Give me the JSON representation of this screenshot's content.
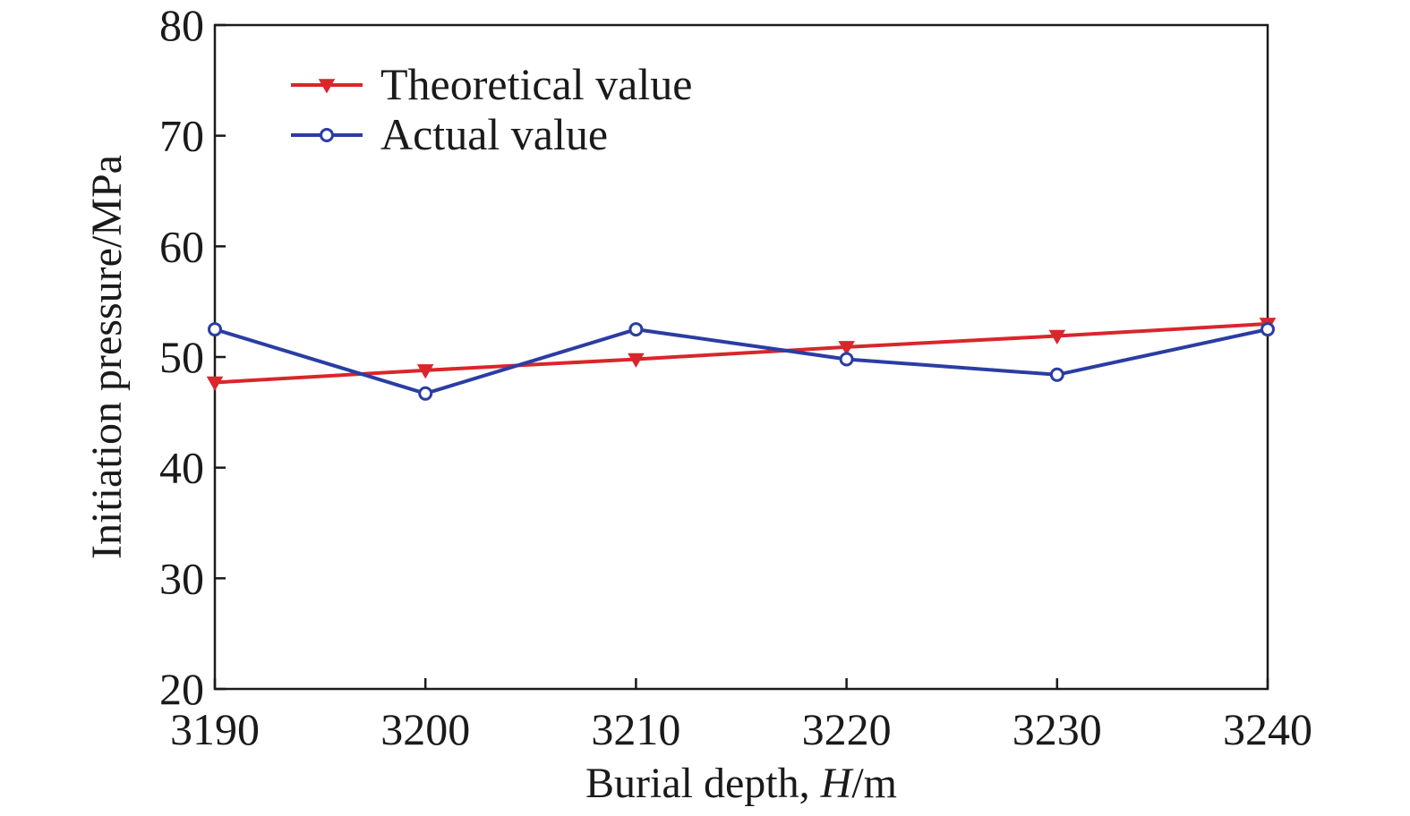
{
  "chart_data": {
    "type": "line",
    "x": [
      3190,
      3200,
      3210,
      3220,
      3230,
      3240
    ],
    "series": [
      {
        "name": "Theoretical value",
        "color": "#d9262b",
        "marker": "triangle-down",
        "values": [
          47.7,
          48.8,
          49.8,
          50.9,
          51.9,
          53.0
        ]
      },
      {
        "name": "Actual value",
        "color": "#2b3da3",
        "marker": "circle-open",
        "values": [
          52.5,
          46.7,
          52.5,
          49.8,
          48.4,
          52.5
        ]
      }
    ],
    "xlabel": "Burial depth, H/m",
    "xlabel_parts": {
      "pre": "Burial depth, ",
      "italic": "H",
      "post": "/m"
    },
    "ylabel": "Initiation pressure/MPa",
    "xlim": [
      3190,
      3240
    ],
    "ylim": [
      20,
      80
    ],
    "xticks": [
      3190,
      3200,
      3210,
      3220,
      3230,
      3240
    ],
    "yticks": [
      20,
      30,
      40,
      50,
      60,
      70,
      80
    ],
    "grid": false,
    "legend_position": "top-left"
  }
}
